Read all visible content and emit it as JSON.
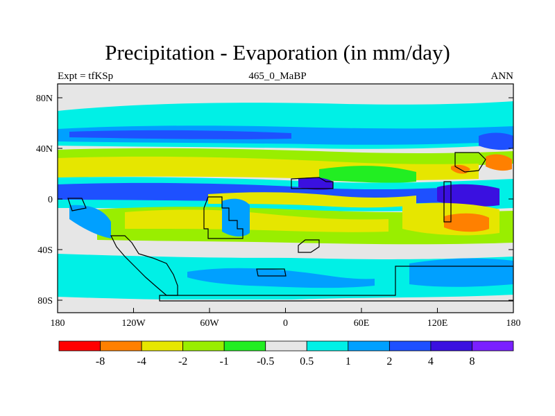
{
  "title": "Precipitation - Evaporation (in mm/day)",
  "left_label": "Expt = tfKSp",
  "center_label": "465_0_MaBP",
  "right_label": "ANN",
  "lat_ticks": [
    "80N",
    "40N",
    "0",
    "40S",
    "80S"
  ],
  "lon_ticks": [
    "180",
    "120W",
    "60W",
    "0",
    "60E",
    "120E",
    "180"
  ],
  "colorbar": {
    "colors": [
      "#ff0000",
      "#ff8000",
      "#e6e600",
      "#99ee00",
      "#22ee22",
      "#e6e6e6",
      "#00f0e6",
      "#00a0ff",
      "#1e50ff",
      "#3a10e0",
      "#7a20ff"
    ],
    "labels": [
      "-8",
      "-4",
      "-2",
      "-1",
      "-0.5",
      "0.5",
      "1",
      "2",
      "4",
      "8"
    ]
  },
  "palette": {
    "neutral": "#e6e6e6",
    "weak_wet": "#00f0e6",
    "wet": "#00a0ff",
    "very_wet": "#1e50ff",
    "extreme_wet": "#3a10e0",
    "weak_dry": "#22ee22",
    "dry": "#99ee00",
    "very_dry": "#e6e600",
    "extreme_dry": "#ff8000"
  }
}
